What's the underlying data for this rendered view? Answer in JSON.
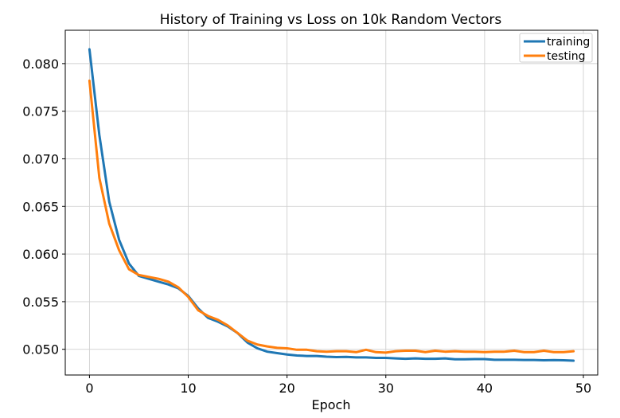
{
  "chart_data": {
    "type": "line",
    "title": "History of Training vs Loss on 10k Random Vectors",
    "xlabel": "Epoch",
    "ylabel": "",
    "xlim": [
      -2.45,
      51.45
    ],
    "ylim": [
      0.0473,
      0.0835
    ],
    "x_ticks": [
      0,
      10,
      20,
      30,
      40,
      50
    ],
    "y_ticks": [
      0.05,
      0.055,
      0.06,
      0.065,
      0.07,
      0.075,
      0.08
    ],
    "y_tick_labels": [
      "0.050",
      "0.055",
      "0.060",
      "0.065",
      "0.070",
      "0.075",
      "0.080"
    ],
    "grid": true,
    "legend_position": "top-right",
    "x": [
      0,
      1,
      2,
      3,
      4,
      5,
      6,
      7,
      8,
      9,
      10,
      11,
      12,
      13,
      14,
      15,
      16,
      17,
      18,
      19,
      20,
      21,
      22,
      23,
      24,
      25,
      26,
      27,
      28,
      29,
      30,
      31,
      32,
      33,
      34,
      35,
      36,
      37,
      38,
      39,
      40,
      41,
      42,
      43,
      44,
      45,
      46,
      47,
      48,
      49
    ],
    "series": [
      {
        "name": "training",
        "color": "#1f77b4",
        "values": [
          0.0815,
          0.0725,
          0.0655,
          0.0615,
          0.059,
          0.0577,
          0.0574,
          0.0571,
          0.0568,
          0.0564,
          0.0556,
          0.0543,
          0.0533,
          0.0529,
          0.0524,
          0.0517,
          0.0507,
          0.0501,
          0.04975,
          0.0496,
          0.04945,
          0.04935,
          0.0493,
          0.0493,
          0.04922,
          0.04918,
          0.0492,
          0.04915,
          0.04915,
          0.0491,
          0.0491,
          0.04905,
          0.049,
          0.04905,
          0.049,
          0.049,
          0.04905,
          0.04895,
          0.04895,
          0.04897,
          0.04897,
          0.0489,
          0.0489,
          0.0489,
          0.04888,
          0.04888,
          0.04885,
          0.04887,
          0.04885,
          0.0488
        ]
      },
      {
        "name": "testing",
        "color": "#ff7f0e",
        "values": [
          0.0782,
          0.068,
          0.0632,
          0.0604,
          0.0584,
          0.0578,
          0.0576,
          0.0574,
          0.0571,
          0.0565,
          0.0555,
          0.0541,
          0.0535,
          0.0531,
          0.0525,
          0.0517,
          0.0509,
          0.0505,
          0.0503,
          0.05015,
          0.0501,
          0.04995,
          0.04995,
          0.0498,
          0.04975,
          0.0498,
          0.0498,
          0.0497,
          0.04995,
          0.0497,
          0.04965,
          0.0498,
          0.04985,
          0.04985,
          0.0497,
          0.04985,
          0.04975,
          0.0498,
          0.04975,
          0.04975,
          0.0497,
          0.04975,
          0.04975,
          0.04985,
          0.0497,
          0.0497,
          0.04985,
          0.0497,
          0.0497,
          0.0498
        ]
      }
    ]
  }
}
